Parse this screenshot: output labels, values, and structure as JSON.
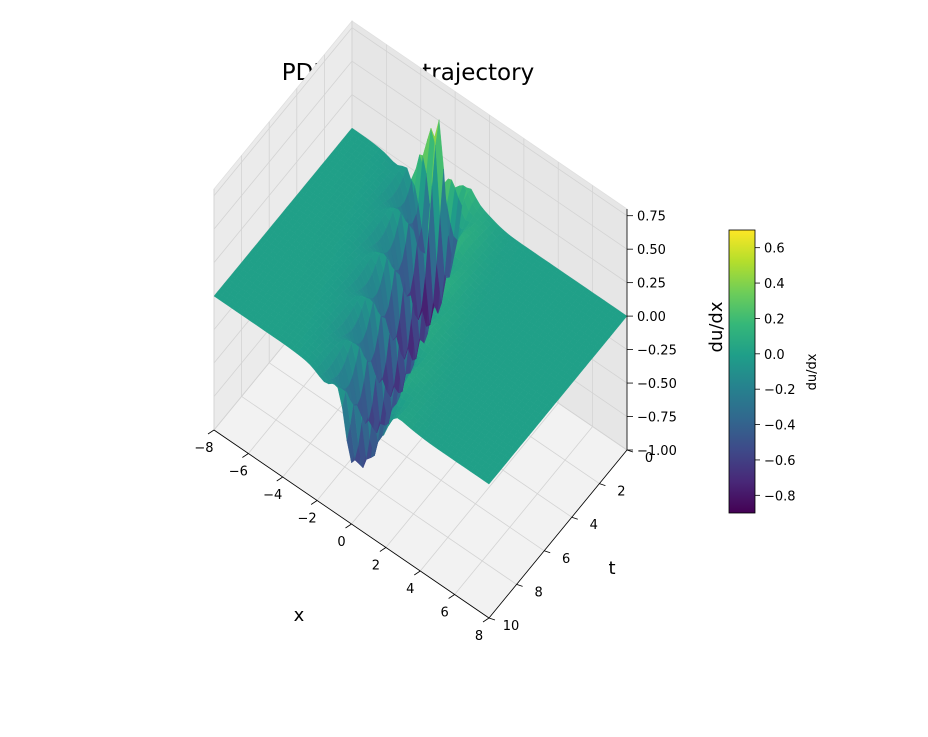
{
  "chart_data": {
    "type": "surface3d",
    "title": "PDE1 du/dx trajectory",
    "xlabel": "x",
    "ylabel": "t",
    "zlabel": "du/dx",
    "colorbar_label": "du/dx",
    "colormap": "viridis",
    "xlim": [
      -8,
      8
    ],
    "tlim": [
      0,
      10
    ],
    "zlim": [
      -1.0,
      0.8
    ],
    "x_ticks": [
      "−8",
      "−6",
      "−4",
      "−2",
      "0",
      "2",
      "4",
      "6",
      "8"
    ],
    "x_tick_values": [
      -8,
      -6,
      -4,
      -2,
      0,
      2,
      4,
      6,
      8
    ],
    "t_ticks": [
      "0",
      "2",
      "4",
      "6",
      "8",
      "10"
    ],
    "t_tick_values": [
      0,
      2,
      4,
      6,
      8,
      10
    ],
    "z_ticks": [
      "−1.00",
      "−0.75",
      "−0.50",
      "−0.25",
      "0.00",
      "0.25",
      "0.50",
      "0.75"
    ],
    "z_tick_values": [
      -1.0,
      -0.75,
      -0.5,
      -0.25,
      0.0,
      0.25,
      0.5,
      0.75
    ],
    "colorbar_ticks": [
      "−0.8",
      "−0.6",
      "−0.4",
      "−0.2",
      "0.0",
      "0.2",
      "0.4",
      "0.6"
    ],
    "colorbar_tick_values": [
      -0.8,
      -0.6,
      -0.4,
      -0.2,
      0.0,
      0.2,
      0.4,
      0.6
    ],
    "colorbar_range": [
      -0.9,
      0.7
    ],
    "grid": true,
    "surface": {
      "description_values": "du/dx(x,t): near 0 everywhere except a moving oscillating front",
      "front_start_x": -3,
      "front_end_x": 0.5,
      "peak_value": 0.7,
      "trough_value": -0.9
    }
  }
}
